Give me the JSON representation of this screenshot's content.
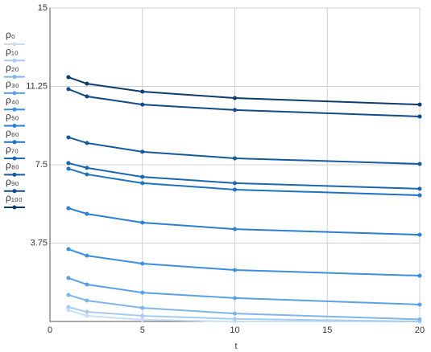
{
  "chart_data": {
    "type": "line",
    "x_label": "t",
    "x": [
      1,
      2,
      5,
      10,
      20
    ],
    "xlim": [
      0,
      20
    ],
    "xticks": [
      0,
      5,
      10,
      15,
      20
    ],
    "ylim": [
      0,
      15
    ],
    "yticks": [
      0,
      3.75,
      7.5,
      11.25,
      15
    ],
    "grid": true,
    "legend": "left",
    "series": [
      {
        "name": "ρ₀",
        "color": "#c9def5",
        "values": [
          0.54,
          0.27,
          0.08,
          0,
          0
        ]
      },
      {
        "name": "ρ₁₀",
        "color": "#a6cbf1",
        "values": [
          0.69,
          0.46,
          0.27,
          0.12,
          0
        ]
      },
      {
        "name": "ρ₂₀",
        "color": "#7fb5eb",
        "values": [
          1.27,
          1.0,
          0.65,
          0.38,
          0.1
        ]
      },
      {
        "name": "ρ₃₀",
        "color": "#5aa1e6",
        "values": [
          2.08,
          1.77,
          1.38,
          1.12,
          0.81
        ]
      },
      {
        "name": "ρ₄₀",
        "color": "#3a8fe0",
        "values": [
          3.46,
          3.15,
          2.77,
          2.46,
          2.19
        ]
      },
      {
        "name": "ρ₅₀",
        "color": "#2a7fd4",
        "values": [
          5.42,
          5.15,
          4.73,
          4.42,
          4.15
        ]
      },
      {
        "name": "ρ₆₀",
        "color": "#1f72c4",
        "values": [
          7.31,
          7.04,
          6.62,
          6.31,
          6.04
        ]
      },
      {
        "name": "ρ₇₀",
        "color": "#1a66b2",
        "values": [
          7.58,
          7.35,
          6.92,
          6.62,
          6.35
        ]
      },
      {
        "name": "ρ₈₀",
        "color": "#15599e",
        "values": [
          8.81,
          8.54,
          8.12,
          7.81,
          7.54
        ]
      },
      {
        "name": "ρ₉₀",
        "color": "#104b87",
        "values": [
          11.12,
          10.77,
          10.38,
          10.12,
          9.81
        ]
      },
      {
        "name": "ρ₁₀₀",
        "color": "#0d3c6e",
        "values": [
          11.69,
          11.38,
          11.0,
          10.69,
          10.38
        ]
      }
    ]
  }
}
